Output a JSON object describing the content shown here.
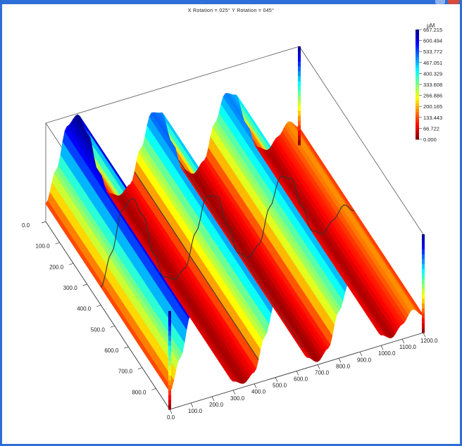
{
  "window": {
    "accent_color": "#2d6fd6",
    "rotation_label": "X Rotation = 025°     Y Rotation = 045°"
  },
  "chart_data": {
    "type": "surface3d",
    "colormap": "jet",
    "colorbar": {
      "unit": "µM",
      "ticks": [
        "667.215",
        "600.494",
        "533.772",
        "467.051",
        "400.329",
        "333.608",
        "266.886",
        "200.165",
        "133.443",
        "66.722",
        "0.000"
      ]
    },
    "x_axis": {
      "ticks": [
        "0.0",
        "100.0",
        "200.0",
        "300.0",
        "400.0",
        "500.0",
        "600.0",
        "700.0",
        "800.0",
        "900.0",
        "1000.0",
        "1100.0",
        "1200.0"
      ],
      "range": [
        0,
        1200
      ]
    },
    "y_axis": {
      "ticks": [
        "0.0",
        "100.0",
        "200.0",
        "300.0",
        "400.0",
        "500.0",
        "600.0",
        "700.0",
        "800.0"
      ],
      "range": [
        0,
        900
      ]
    },
    "z_range": [
      0,
      667.215
    ],
    "profile_x": [
      0,
      50,
      100,
      150,
      200,
      250,
      300,
      350,
      400,
      450,
      500,
      550,
      600,
      650,
      700,
      750,
      800,
      850,
      900,
      950,
      1000,
      1050,
      1100,
      1150,
      1200
    ],
    "profile_z": [
      120,
      330,
      600,
      660,
      520,
      240,
      60,
      25,
      80,
      300,
      520,
      500,
      280,
      70,
      20,
      90,
      320,
      500,
      470,
      260,
      70,
      30,
      100,
      180,
      120
    ],
    "cross_section_lines": 2
  }
}
